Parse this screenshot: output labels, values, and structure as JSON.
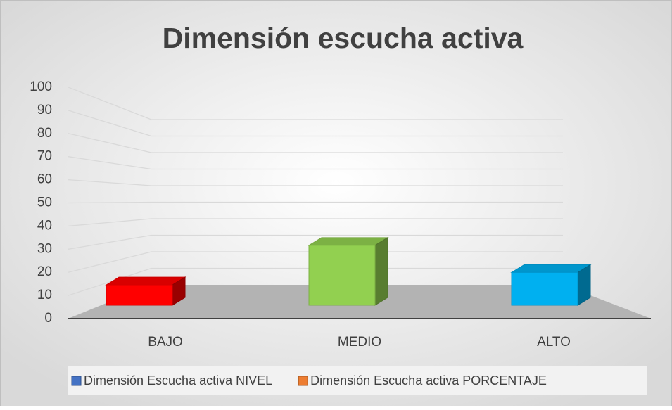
{
  "chart_data": {
    "type": "bar3d",
    "title": "Dimensión escucha activa",
    "categories": [
      "BAJO",
      "MEDIO",
      "ALTO"
    ],
    "series": [
      {
        "name": "Dimensión Escucha activa NIVEL",
        "color": "#4472c4",
        "values": [
          null,
          null,
          null
        ]
      },
      {
        "name": "Dimensión Escucha activa PORCENTAJE",
        "color": "#ed7d31",
        "values": [
          18,
          53,
          29
        ],
        "point_colors": [
          "#ff0000",
          "#92d050",
          "#00b0f0"
        ]
      }
    ],
    "ylim": [
      0,
      100
    ],
    "yticks": [
      0,
      10,
      20,
      30,
      40,
      50,
      60,
      70,
      80,
      90,
      100
    ],
    "grid": true,
    "legend": "bottom"
  }
}
